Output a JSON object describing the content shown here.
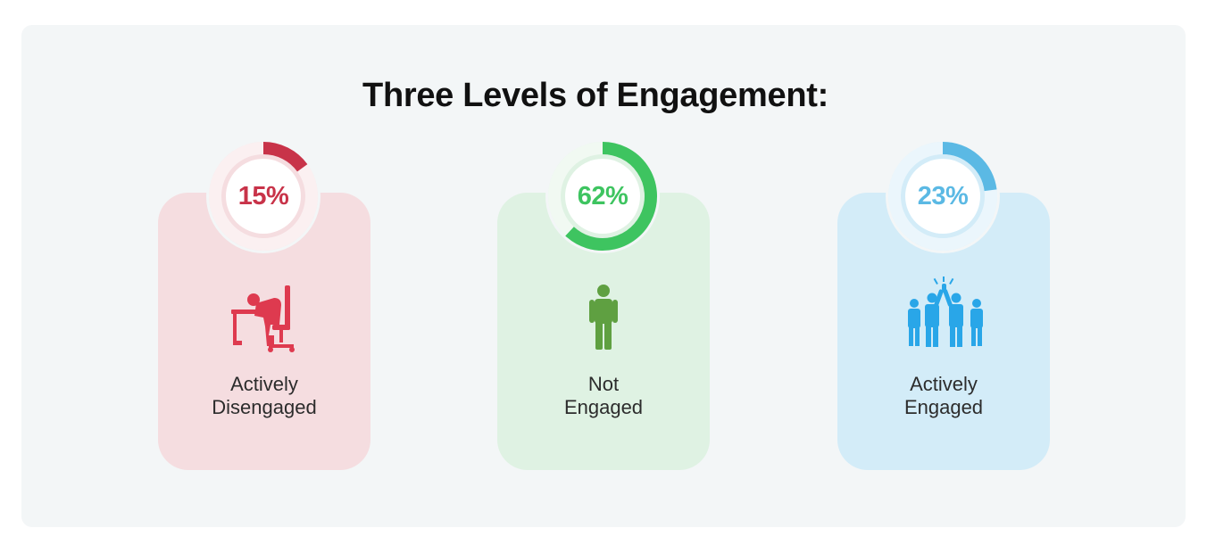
{
  "title": "Three Levels of Engagement:",
  "colors": {
    "disengaged": "#c83349",
    "not_engaged": "#3ec460",
    "engaged": "#5bb9e4"
  },
  "chart_data": {
    "type": "pie",
    "title": "Three Levels of Engagement:",
    "unit": "%",
    "segments": [
      {
        "label_line1": "Actively",
        "label_line2": "Disengaged",
        "value": 15,
        "display": "15%",
        "icon": "person-slumped-at-desk-icon",
        "color": "#c83349"
      },
      {
        "label_line1": "Not",
        "label_line2": "Engaged",
        "value": 62,
        "display": "62%",
        "icon": "standing-person-icon",
        "color": "#3ec460"
      },
      {
        "label_line1": "Actively",
        "label_line2": "Engaged",
        "value": 23,
        "display": "23%",
        "icon": "team-high-five-icon",
        "color": "#5bb9e4"
      }
    ]
  }
}
